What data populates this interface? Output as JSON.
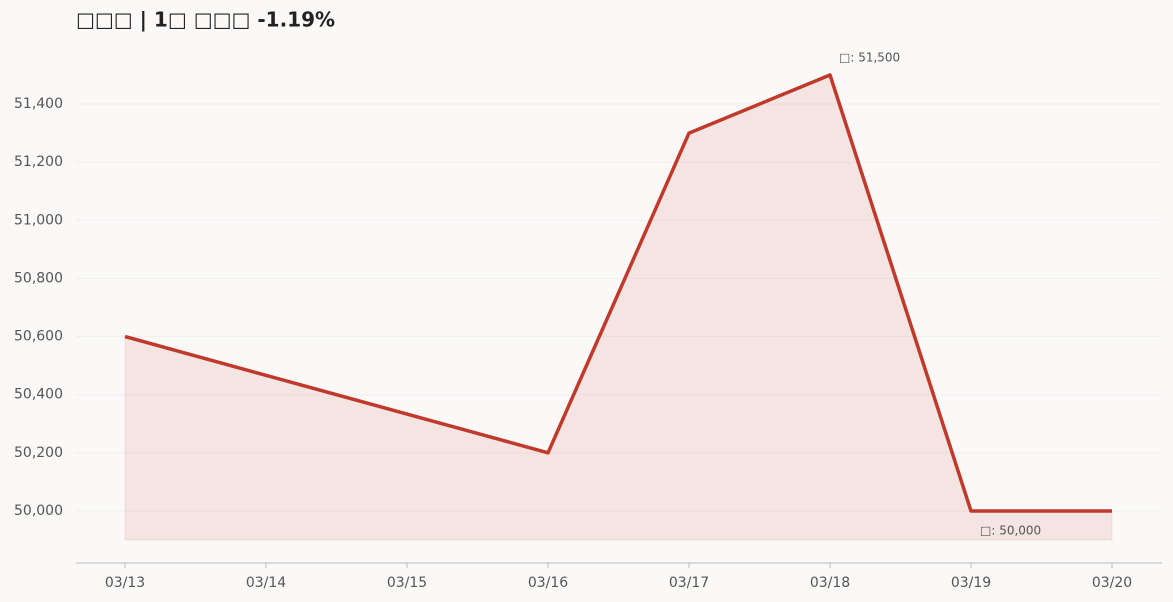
{
  "chart_data": {
    "type": "line",
    "title": "□□□  |  1□ □□□  -1.19%",
    "x": [
      "03/13",
      "03/16",
      "03/17",
      "03/18",
      "03/19",
      "03/20"
    ],
    "xticks": [
      "03/13",
      "03/14",
      "03/15",
      "03/16",
      "03/17",
      "03/18",
      "03/19",
      "03/20"
    ],
    "series": [
      {
        "color": "#c0392b",
        "values": [
          50600,
          50200,
          51300,
          51500,
          50000,
          50000
        ]
      }
    ],
    "area_base": 49900,
    "ylim": [
      49821,
      51600
    ],
    "yticks": [
      {
        "value": 50000,
        "label": "50,000"
      },
      {
        "value": 50200,
        "label": "50,200"
      },
      {
        "value": 50400,
        "label": "50,400"
      },
      {
        "value": 50600,
        "label": "50,600"
      },
      {
        "value": 50800,
        "label": "50,800"
      },
      {
        "value": 51000,
        "label": "51,000"
      },
      {
        "value": 51200,
        "label": "51,200"
      },
      {
        "value": 51400,
        "label": "51,400"
      }
    ],
    "grid": true,
    "annotations": [
      {
        "text": "□: 51,500",
        "x": "03/18",
        "y": 51500,
        "position": "above"
      },
      {
        "text": "□: 50,000",
        "x": "03/19",
        "y": 50000,
        "position": "below"
      }
    ]
  }
}
